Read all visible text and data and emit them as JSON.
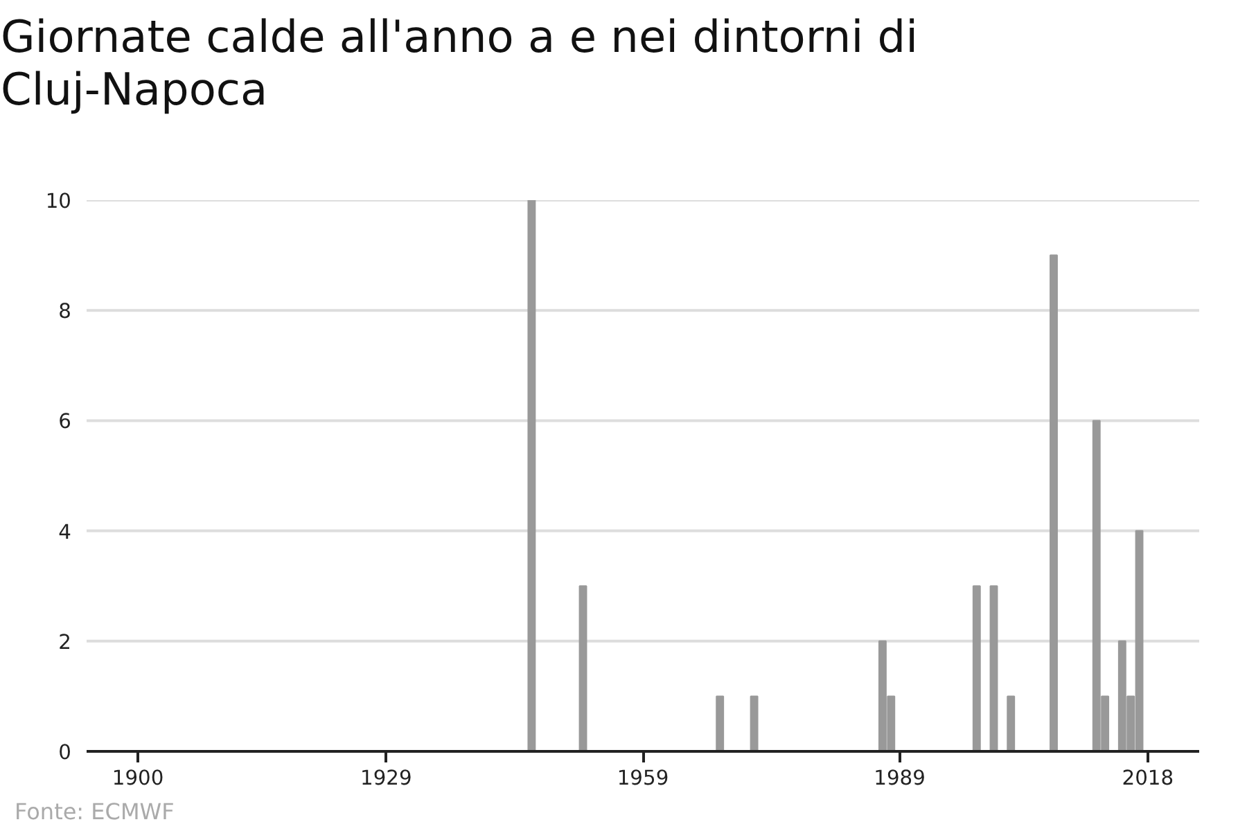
{
  "chart_data": {
    "type": "bar",
    "title": "Giornate calde all'anno a e nei dintorni di Cluj-Napoca",
    "annotations": [
      "Fonte: ECMWF"
    ],
    "x": [
      1946,
      1952,
      1968,
      1972,
      1987,
      1988,
      1998,
      2000,
      2002,
      2007,
      2012,
      2013,
      2015,
      2016,
      2017
    ],
    "values": [
      10,
      3,
      1,
      1,
      2,
      1,
      3,
      3,
      1,
      9,
      6,
      1,
      2,
      1,
      4
    ],
    "color": "#999999",
    "xlim": [
      1894,
      2024
    ],
    "xticks": [
      1900,
      1929,
      1959,
      1989,
      2018
    ],
    "ylim": [
      0,
      10
    ],
    "yticks": [
      0,
      2,
      4,
      6,
      8,
      10
    ],
    "grid": "y"
  }
}
